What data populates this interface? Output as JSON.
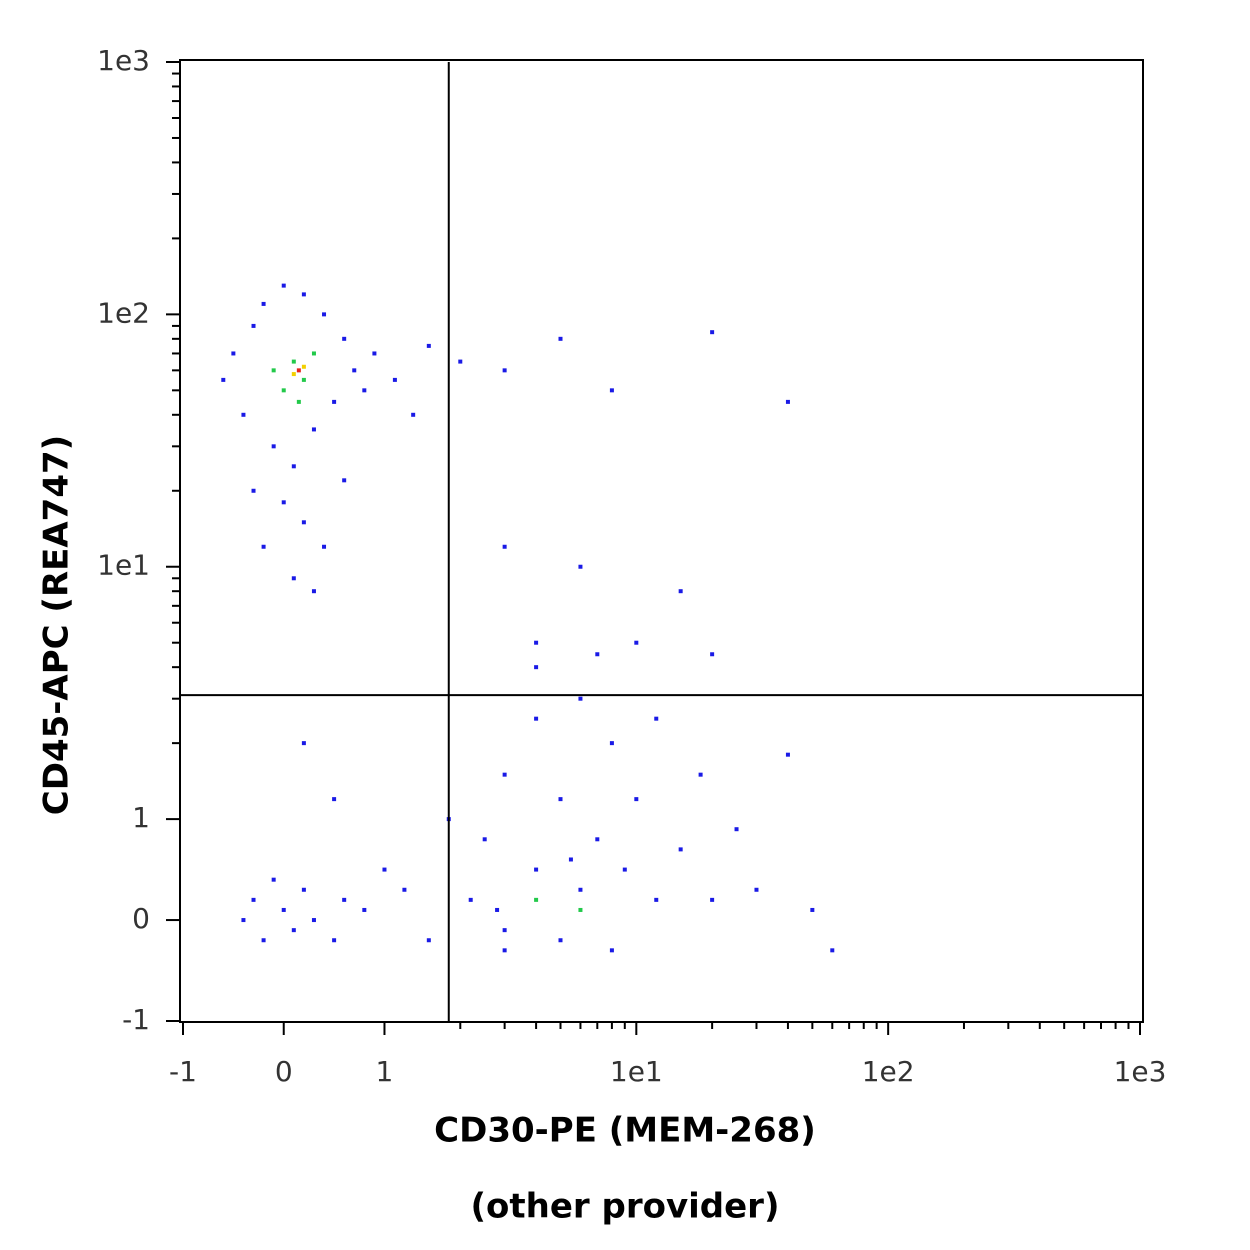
{
  "chart_data": {
    "type": "scatter",
    "xlabel": [
      "CD30-PE (MEM-268)",
      "(other provider)"
    ],
    "ylabel": "CD45-APC (REA747)",
    "xscale": "biexponential",
    "yscale": "biexponential",
    "xlim": [
      -1,
      1000
    ],
    "ylim": [
      -1,
      1000
    ],
    "xticks": [
      -1,
      0,
      1,
      {
        "value": 10,
        "label": "1e1"
      },
      {
        "value": 100,
        "label": "1e2"
      },
      {
        "value": 1000,
        "label": "1e3"
      }
    ],
    "yticks": [
      -1,
      0,
      1,
      {
        "value": 10,
        "label": "1e1"
      },
      {
        "value": 100,
        "label": "1e2"
      },
      {
        "value": 1000,
        "label": "1e3"
      }
    ],
    "xminorticks": [
      2,
      3,
      4,
      5,
      6,
      7,
      8,
      9,
      20,
      30,
      40,
      50,
      60,
      70,
      80,
      90,
      200,
      300,
      400,
      500,
      600,
      700,
      800,
      900
    ],
    "yminorticks": [
      2,
      3,
      4,
      5,
      6,
      7,
      8,
      9,
      20,
      30,
      40,
      50,
      60,
      70,
      80,
      90,
      200,
      300,
      400,
      500,
      600,
      700,
      800,
      900
    ],
    "gate": {
      "x": 1.8,
      "y": 3.1
    },
    "series": [
      {
        "color": "#1a1ae6",
        "x": [
          -0.6,
          -0.5,
          -0.4,
          -0.3,
          -0.2,
          -0.1,
          0,
          0.1,
          0.2,
          0.3,
          0.4,
          0.5,
          0.6,
          0.7,
          0.8,
          0.9,
          1.1,
          1.3,
          0,
          0.2,
          -0.3,
          0.4,
          0.1,
          0.3,
          0.6,
          -0.2,
          1.5,
          2,
          3,
          5,
          8,
          20,
          40,
          3,
          6,
          15,
          10,
          20,
          4,
          -0.4,
          -0.3,
          -0.2,
          0,
          0.1,
          0.2,
          0.3,
          -0.1,
          0.5,
          0.6,
          0.8,
          1,
          0.5,
          0.2,
          1.2,
          1.5,
          1.8,
          2.2,
          2.5,
          3,
          3,
          4,
          4,
          5,
          5,
          6,
          6,
          7,
          8,
          8,
          9,
          10,
          12,
          12,
          15,
          18,
          20,
          25,
          30,
          40,
          50,
          60,
          4,
          7,
          3,
          2.8,
          5.5
        ],
        "y": [
          55,
          70,
          40,
          90,
          110,
          30,
          130,
          25,
          120,
          35,
          100,
          45,
          80,
          60,
          50,
          70,
          55,
          40,
          18,
          15,
          20,
          12,
          9,
          8,
          22,
          12,
          75,
          65,
          60,
          80,
          50,
          85,
          45,
          12,
          10,
          8,
          5,
          4.5,
          5,
          0,
          0.2,
          -0.2,
          0.1,
          -0.1,
          0.3,
          0,
          0.4,
          -0.2,
          0.2,
          0.1,
          0.5,
          1.2,
          2,
          0.3,
          -0.2,
          1,
          0.2,
          0.8,
          -0.3,
          1.5,
          0.5,
          2.5,
          -0.2,
          1.2,
          0.3,
          3,
          0.8,
          -0.3,
          2,
          0.5,
          1.2,
          0.2,
          2.5,
          0.7,
          1.5,
          0.2,
          0.9,
          0.3,
          1.8,
          0.1,
          -0.3,
          4,
          4.5,
          -0.1,
          0.1,
          0.6
        ]
      },
      {
        "color": "#22c94a",
        "x": [
          0,
          0.1,
          0.2,
          -0.1,
          0.3,
          0.15,
          4,
          6
        ],
        "y": [
          50,
          65,
          55,
          60,
          70,
          45,
          0.2,
          0.1
        ]
      },
      {
        "color": "#f2d000",
        "x": [
          0.1,
          0.2
        ],
        "y": [
          58,
          62
        ]
      },
      {
        "color": "#e8201a",
        "x": [
          0.15
        ],
        "y": [
          60
        ]
      }
    ]
  }
}
